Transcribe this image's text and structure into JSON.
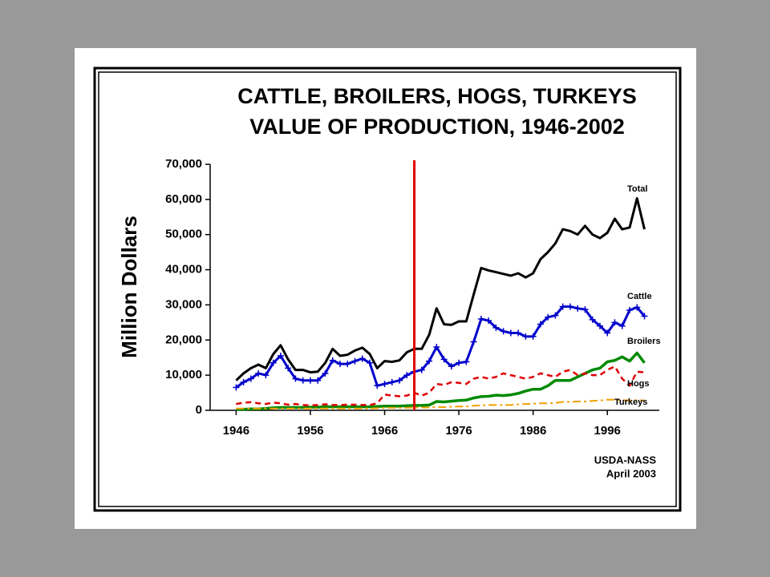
{
  "chart_data": {
    "type": "line",
    "title": "CATTLE, BROILERS, HOGS, TURKEYS",
    "subtitle": "VALUE OF PRODUCTION, 1946-2002",
    "y_label": "Million Dollars",
    "source": "USDA-NASS",
    "date": "April 2003",
    "reference_line": {
      "x": 1970,
      "color": "#e00000"
    },
    "x": [
      1946,
      1947,
      1948,
      1949,
      1950,
      1951,
      1952,
      1953,
      1954,
      1955,
      1956,
      1957,
      1958,
      1959,
      1960,
      1961,
      1962,
      1963,
      1964,
      1965,
      1966,
      1967,
      1968,
      1969,
      1970,
      1971,
      1972,
      1973,
      1974,
      1975,
      1976,
      1977,
      1978,
      1979,
      1980,
      1981,
      1982,
      1983,
      1984,
      1985,
      1986,
      1987,
      1988,
      1989,
      1990,
      1991,
      1992,
      1993,
      1994,
      1995,
      1996,
      1997,
      1998,
      1999,
      2000,
      2001
    ],
    "xlim": [
      1942.5,
      2003
    ],
    "xticks": [
      1946,
      1956,
      1966,
      1976,
      1986,
      1996
    ],
    "ylim": [
      0,
      70000
    ],
    "yticks": [
      0,
      {
        "value": 10000,
        "label": "10,000"
      },
      {
        "value": 20000,
        "label": "20,000"
      },
      {
        "value": 30000,
        "label": "30,000"
      },
      {
        "value": 40000,
        "label": "40,000"
      },
      {
        "value": 50000,
        "label": "50,000"
      },
      {
        "value": 60000,
        "label": "60,000"
      },
      {
        "value": 70000,
        "label": "70,000"
      }
    ],
    "series": [
      {
        "name": "Total",
        "color": "#000000",
        "dash": "solid",
        "values": [
          8500,
          10500,
          12000,
          13000,
          12000,
          16000,
          18500,
          14500,
          11500,
          11500,
          10800,
          11000,
          13500,
          17500,
          15500,
          15800,
          17000,
          17800,
          16000,
          12000,
          14000,
          13800,
          14200,
          16500,
          17500,
          17500,
          21500,
          29000,
          24500,
          24300,
          25300,
          25300,
          33000,
          40500,
          39800,
          39300,
          38800,
          38300,
          39000,
          37800,
          39000,
          43000,
          45000,
          47500,
          51500,
          51000,
          50000,
          52500,
          50000,
          49000,
          50500,
          54500,
          51500,
          52000,
          60300,
          51500
        ]
      },
      {
        "name": "Cattle",
        "color": "#0000cc",
        "dash": "solid",
        "marker": "plus",
        "values": [
          6500,
          8000,
          9000,
          10500,
          10000,
          13500,
          15500,
          12000,
          9000,
          8500,
          8500,
          8500,
          10500,
          14200,
          13200,
          13200,
          14000,
          14700,
          13500,
          7000,
          7500,
          8000,
          8500,
          10000,
          11000,
          11500,
          14000,
          18000,
          14500,
          12500,
          13500,
          13800,
          19500,
          26000,
          25500,
          23500,
          22500,
          22000,
          22000,
          21000,
          21000,
          24500,
          26500,
          27000,
          29500,
          29500,
          29000,
          28700,
          25800,
          24000,
          22000,
          25000,
          24000,
          28500,
          29300,
          26800
        ]
      },
      {
        "name": "Broilers",
        "color": "#008a00",
        "dash": "solid",
        "values": [
          300,
          300,
          400,
          400,
          500,
          700,
          800,
          800,
          800,
          800,
          900,
          900,
          1000,
          1000,
          1000,
          1000,
          1000,
          1000,
          1000,
          1100,
          1200,
          1200,
          1200,
          1300,
          1400,
          1400,
          1500,
          2500,
          2400,
          2600,
          2800,
          2900,
          3500,
          3900,
          4000,
          4300,
          4200,
          4400,
          4800,
          5500,
          6000,
          6000,
          7000,
          8500,
          8500,
          8500,
          9500,
          10500,
          11500,
          12000,
          13800,
          14200,
          15200,
          14000,
          16300,
          13500
        ]
      },
      {
        "name": "Hogs",
        "color": "#e00000",
        "dash": "dashed",
        "values": [
          1800,
          2200,
          2300,
          2000,
          1800,
          2200,
          2000,
          1600,
          1800,
          1500,
          1400,
          1500,
          1700,
          1500,
          1500,
          1600,
          1600,
          1500,
          1500,
          2000,
          4500,
          4200,
          4000,
          4200,
          5000,
          4200,
          5000,
          7500,
          7200,
          8000,
          7800,
          7500,
          9000,
          9500,
          9000,
          9500,
          10500,
          10000,
          9500,
          9000,
          9500,
          10500,
          10000,
          9500,
          11000,
          11500,
          10000,
          10500,
          10000,
          10000,
          11500,
          12500,
          9000,
          7000,
          11000,
          10800
        ]
      },
      {
        "name": "Turkeys",
        "color": "#f0a000",
        "dash": "dashdot",
        "values": [
          500,
          500,
          500,
          500,
          500,
          500,
          500,
          500,
          500,
          500,
          500,
          500,
          500,
          500,
          500,
          500,
          500,
          500,
          500,
          600,
          700,
          700,
          700,
          700,
          800,
          800,
          800,
          1000,
          900,
          1000,
          1100,
          1100,
          1300,
          1400,
          1500,
          1500,
          1500,
          1500,
          1700,
          1800,
          1900,
          2000,
          2000,
          2100,
          2400,
          2400,
          2500,
          2500,
          2700,
          2800,
          3000,
          3000,
          2900,
          2800,
          2900,
          2800
        ]
      }
    ]
  }
}
